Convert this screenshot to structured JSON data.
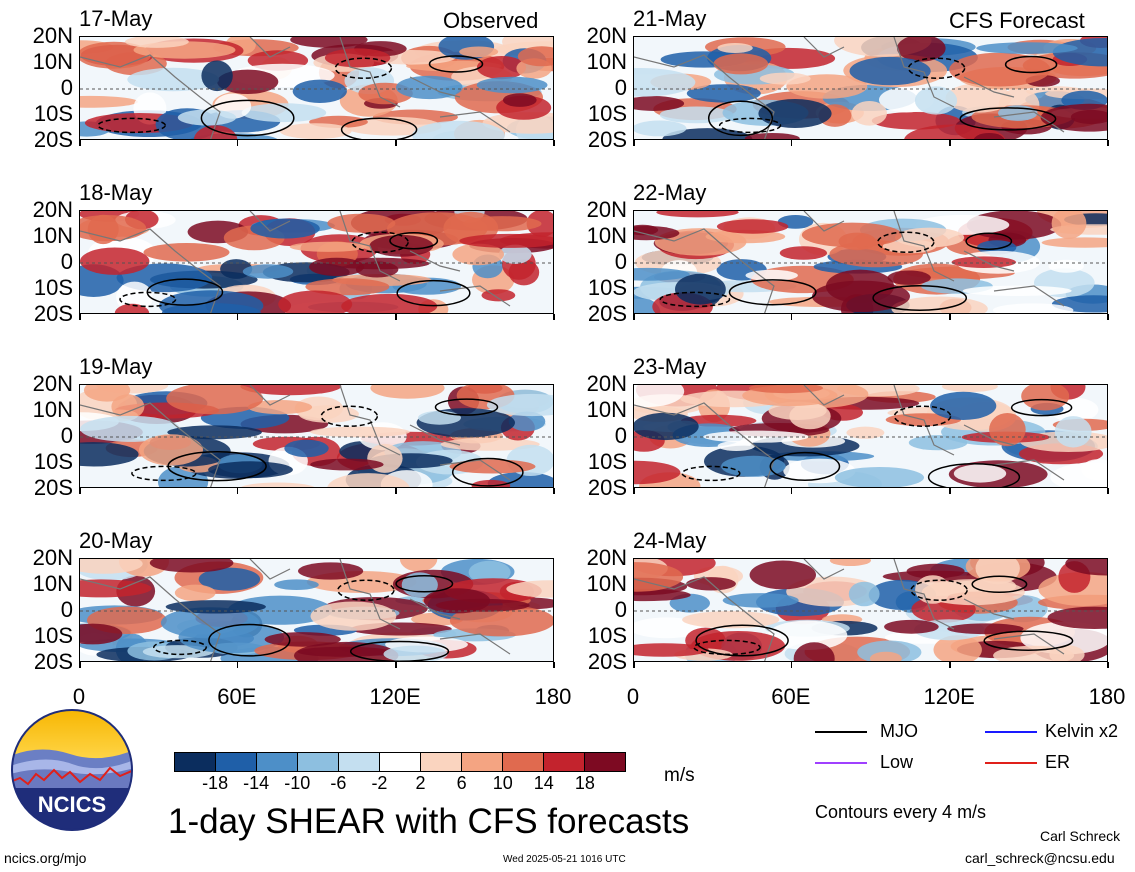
{
  "headers": {
    "observed": "Observed",
    "forecast": "CFS Forecast"
  },
  "panels": [
    {
      "date": "17-May",
      "seed": 1,
      "column": "observed"
    },
    {
      "date": "18-May",
      "seed": 2,
      "column": "observed"
    },
    {
      "date": "19-May",
      "seed": 3,
      "column": "observed"
    },
    {
      "date": "20-May",
      "seed": 4,
      "column": "observed"
    },
    {
      "date": "21-May",
      "seed": 5,
      "column": "forecast"
    },
    {
      "date": "22-May",
      "seed": 6,
      "column": "forecast"
    },
    {
      "date": "23-May",
      "seed": 7,
      "column": "forecast"
    },
    {
      "date": "24-May",
      "seed": 8,
      "column": "forecast"
    }
  ],
  "y_ticks": [
    "20N",
    "10N",
    "0",
    "10S",
    "20S"
  ],
  "x_ticks": [
    "0",
    "60E",
    "120E",
    "180"
  ],
  "colorbar": {
    "colors": [
      "#0b2d5e",
      "#1f5fa8",
      "#4d8fc8",
      "#8dbfe0",
      "#c4dff0",
      "#ffffff",
      "#fad4bf",
      "#f4a482",
      "#e06a4f",
      "#c3232d",
      "#7d0a22"
    ],
    "ticks": [
      "-18",
      "-14",
      "-10",
      "-6",
      "-2",
      "2",
      "6",
      "10",
      "14",
      "18"
    ],
    "units": "m/s"
  },
  "legend": {
    "items": [
      {
        "label": "MJO",
        "color": "#000000"
      },
      {
        "label": "Kelvin x2",
        "color": "#1a1aff"
      },
      {
        "label": "Low",
        "color": "#a040ff"
      },
      {
        "label": "ER",
        "color": "#e0201a"
      }
    ],
    "note": "Contours every 4 m/s"
  },
  "title": "1-day SHEAR with CFS forecasts",
  "footer": {
    "url": "ncics.org/mjo",
    "timestamp": "Wed 2025-05-21 1016 UTC",
    "author": "Carl Schreck",
    "email": "carl_schreck@ncsu.edu"
  },
  "logo_text": "NCICS",
  "chart_data": {
    "type": "heatmap",
    "title": "1-day SHEAR with CFS forecasts",
    "x_axis": {
      "ticks": [
        "0",
        "60E",
        "120E",
        "180"
      ],
      "range": [
        0,
        180
      ]
    },
    "y_axis": {
      "ticks": [
        "20N",
        "10N",
        "0",
        "10S",
        "20S"
      ],
      "range": [
        -20,
        20
      ]
    },
    "color_levels": [
      -18,
      -14,
      -10,
      -6,
      -2,
      2,
      6,
      10,
      14,
      18
    ],
    "units": "m/s",
    "contour_interval": "4 m/s",
    "contour_series": [
      "MJO",
      "Kelvin x2",
      "Low",
      "ER"
    ],
    "dates": [
      "17-May",
      "18-May",
      "19-May",
      "20-May",
      "21-May",
      "22-May",
      "23-May",
      "24-May"
    ]
  }
}
